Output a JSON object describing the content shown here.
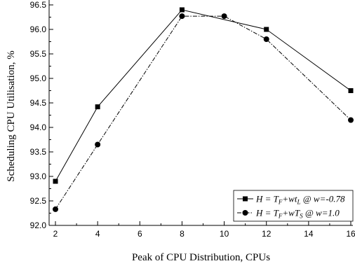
{
  "chart_data": {
    "type": "line",
    "xlabel": "Peak of CPU Distribution, CPUs",
    "ylabel": "Scheduling CPU Utilisation, %",
    "xlim": [
      1.7,
      16.1
    ],
    "ylim": [
      92.0,
      96.6
    ],
    "xticks": [
      2,
      4,
      6,
      8,
      10,
      12,
      14,
      16
    ],
    "yticks": [
      92.0,
      92.5,
      93.0,
      93.5,
      94.0,
      94.5,
      95.0,
      95.5,
      96.0,
      96.5
    ],
    "legend_position": "bottom-right",
    "series": [
      {
        "name": "H = T_F+wt_L @ w=-0.78",
        "legend_parts": [
          {
            "t": "H = T",
            "sub": false
          },
          {
            "t": "F",
            "sub": true
          },
          {
            "t": "+wt",
            "sub": false
          },
          {
            "t": "L",
            "sub": true
          },
          {
            "t": " @ w=-0.78",
            "sub": false
          }
        ],
        "marker": "square",
        "line_style": "solid",
        "color": "#000000",
        "x": [
          2,
          4,
          8,
          12,
          16
        ],
        "y": [
          92.9,
          94.42,
          96.4,
          96.0,
          94.75
        ]
      },
      {
        "name": "H = T_F+wT_S @ w=1.0",
        "legend_parts": [
          {
            "t": "H = T",
            "sub": false
          },
          {
            "t": "F",
            "sub": true
          },
          {
            "t": "+wT",
            "sub": false
          },
          {
            "t": "S",
            "sub": true
          },
          {
            "t": " @ w=1.0",
            "sub": false
          }
        ],
        "marker": "circle",
        "line_style": "dash-dot",
        "color": "#000000",
        "x": [
          2,
          4,
          8,
          10,
          12,
          16
        ],
        "y": [
          92.33,
          93.65,
          96.27,
          96.27,
          95.8,
          94.15
        ]
      }
    ]
  }
}
